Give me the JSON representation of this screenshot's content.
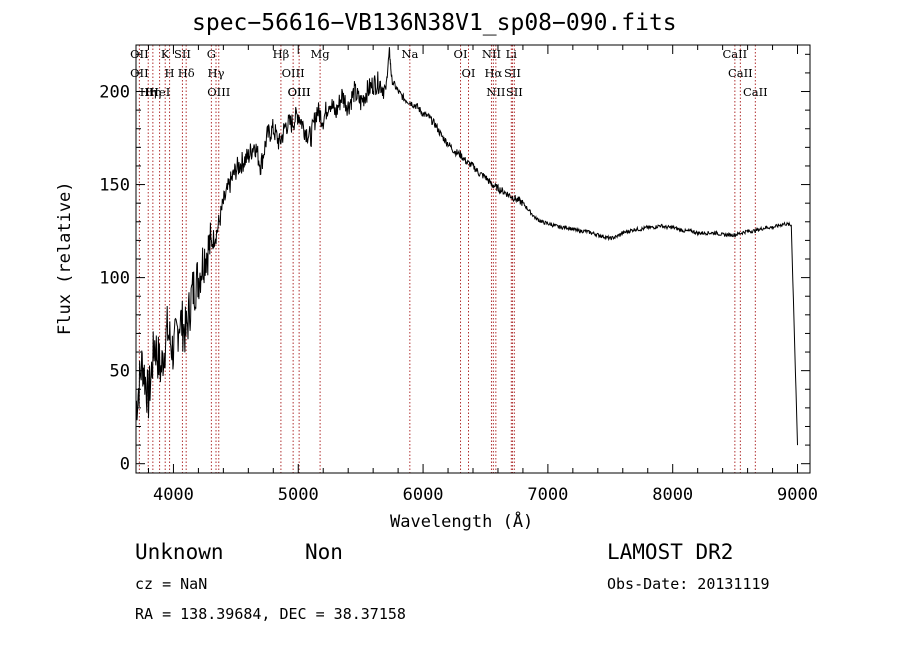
{
  "chart_data": {
    "type": "line",
    "title": "spec−56616−VB136N38V1_sp08−090.fits",
    "xlabel": "Wavelength (Å)",
    "ylabel": "Flux (relative)",
    "xlim": [
      3700,
      9100
    ],
    "ylim": [
      -5,
      225
    ],
    "xticks": [
      4000,
      5000,
      6000,
      7000,
      8000,
      9000
    ],
    "xtick_labels": [
      "4000",
      "5000",
      "6000",
      "7000",
      "8000",
      "9000"
    ],
    "yticks": [
      0,
      50,
      100,
      150,
      200
    ],
    "ytick_labels": [
      "0",
      "50",
      "100",
      "150",
      "200"
    ],
    "grid": false,
    "series": [
      {
        "x": [
          3700,
          3750,
          3800,
          3850,
          3900,
          3950,
          4000,
          4050,
          4100,
          4150,
          4200,
          4250,
          4300,
          4350,
          4400,
          4450,
          4500,
          4550,
          4600,
          4650,
          4700,
          4750,
          4800,
          4850,
          4900,
          4950,
          5000,
          5050,
          5100,
          5150,
          5200,
          5250,
          5300,
          5350,
          5400,
          5450,
          5500,
          5550,
          5600,
          5650,
          5700,
          5730,
          5750,
          5800,
          5850,
          5900,
          5950,
          6000,
          6050,
          6100,
          6150,
          6200,
          6250,
          6300,
          6350,
          6400,
          6450,
          6500,
          6550,
          6600,
          6650,
          6700,
          6750,
          6800,
          6850,
          6900,
          6950,
          7000,
          7050,
          7100,
          7150,
          7200,
          7250,
          7300,
          7350,
          7400,
          7450,
          7500,
          7550,
          7600,
          7650,
          7700,
          7750,
          7800,
          7850,
          7900,
          7950,
          8000,
          8050,
          8100,
          8150,
          8200,
          8250,
          8300,
          8350,
          8400,
          8450,
          8500,
          8550,
          8600,
          8650,
          8700,
          8750,
          8800,
          8850,
          8900,
          8950,
          9000
        ],
        "y": [
          30,
          55,
          35,
          65,
          50,
          72,
          60,
          78,
          70,
          92,
          100,
          112,
          118,
          125,
          140,
          150,
          158,
          162,
          165,
          172,
          160,
          176,
          180,
          172,
          182,
          183,
          188,
          180,
          175,
          190,
          185,
          195,
          188,
          198,
          192,
          200,
          194,
          200,
          204,
          205,
          200,
          222,
          206,
          200,
          196,
          194,
          192,
          188,
          186,
          182,
          176,
          172,
          168,
          166,
          162,
          160,
          156,
          154,
          150,
          148,
          146,
          144,
          142,
          140,
          136,
          132,
          130,
          129,
          128,
          127,
          127,
          126,
          125,
          125,
          124,
          123,
          122,
          121,
          122,
          124,
          125,
          126,
          126,
          127,
          127,
          128,
          127,
          127,
          126,
          125,
          125,
          124,
          124,
          124,
          124,
          123,
          123,
          123,
          124,
          125,
          125,
          126,
          127,
          127,
          128,
          129,
          128,
          10
        ]
      }
    ],
    "lines": [
      {
        "x": 3727,
        "labels": [
          "OII",
          "OII"
        ]
      },
      {
        "x": 3798,
        "labels": [
          "Hη"
        ]
      },
      {
        "x": 3835,
        "labels": [
          "Hη"
        ]
      },
      {
        "x": 3889,
        "labels": [
          "HeI"
        ]
      },
      {
        "x": 3934,
        "labels": [
          "K"
        ]
      },
      {
        "x": 3969,
        "labels": [
          "H"
        ]
      },
      {
        "x": 4072,
        "labels": [
          "SII"
        ]
      },
      {
        "x": 4102,
        "labels": [
          "Hδ"
        ]
      },
      {
        "x": 4304,
        "labels": [
          "G"
        ]
      },
      {
        "x": 4341,
        "labels": [
          "Hγ"
        ]
      },
      {
        "x": 4363,
        "labels": [
          "OIII"
        ]
      },
      {
        "x": 4861,
        "labels": [
          "Hβ"
        ]
      },
      {
        "x": 4959,
        "labels": [
          "OIII"
        ]
      },
      {
        "x": 5007,
        "labels": [
          "OIII",
          "OIII"
        ]
      },
      {
        "x": 5175,
        "labels": [
          "Mg"
        ]
      },
      {
        "x": 5894,
        "labels": [
          "Na"
        ]
      },
      {
        "x": 6300,
        "labels": [
          "OI"
        ]
      },
      {
        "x": 6364,
        "labels": [
          "OI"
        ]
      },
      {
        "x": 6548,
        "labels": [
          "NII"
        ]
      },
      {
        "x": 6563,
        "labels": [
          "Hα"
        ]
      },
      {
        "x": 6583,
        "labels": [
          "NII"
        ]
      },
      {
        "x": 6707,
        "labels": [
          "Li"
        ]
      },
      {
        "x": 6716,
        "labels": [
          "SII"
        ]
      },
      {
        "x": 6731,
        "labels": [
          "SII"
        ]
      },
      {
        "x": 8498,
        "labels": [
          "CaII"
        ]
      },
      {
        "x": 8542,
        "labels": [
          "CaII"
        ]
      },
      {
        "x": 8662,
        "labels": [
          "CaII"
        ]
      }
    ]
  },
  "info": {
    "object_class": "Unknown",
    "subclass": "Non",
    "survey": "LAMOST DR2",
    "redshift": "cz = NaN",
    "obs_date": "Obs-Date: 20131119",
    "coords": "RA = 138.39684, DEC =  38.37158"
  }
}
